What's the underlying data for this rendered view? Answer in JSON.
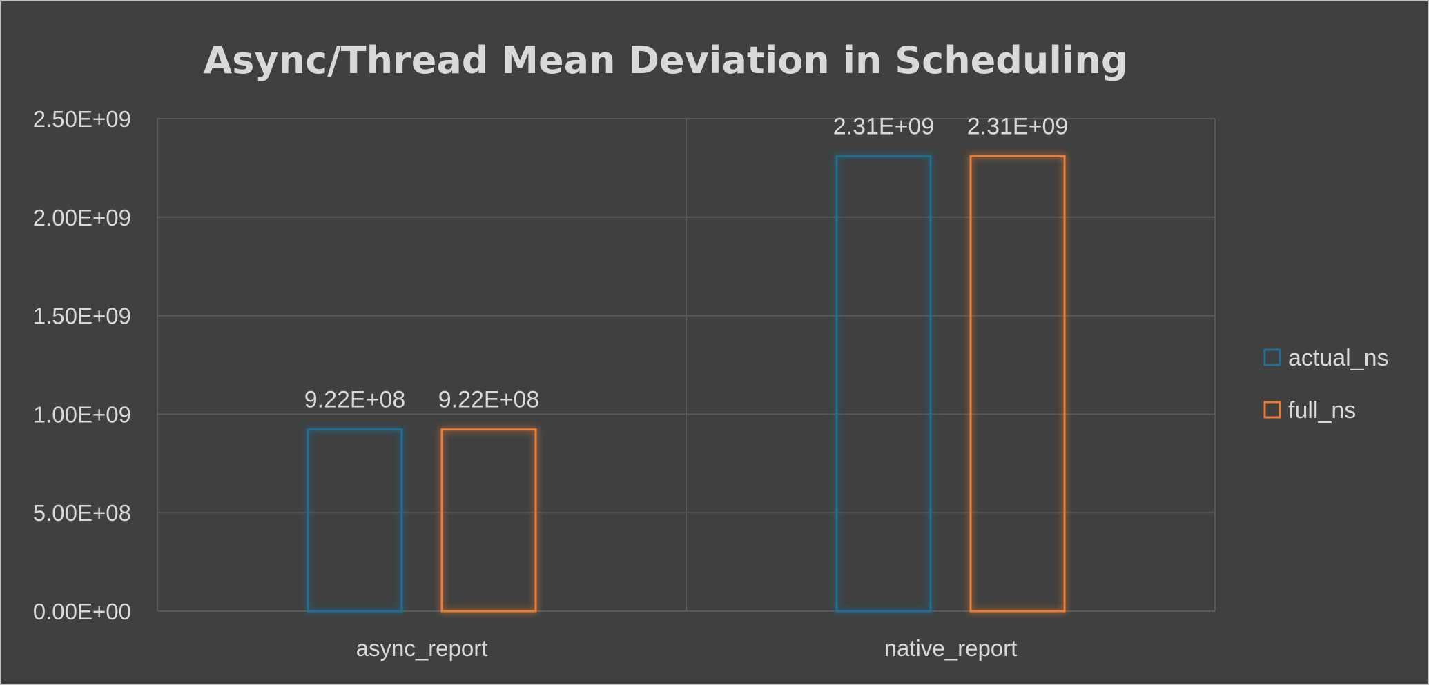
{
  "chart_data": {
    "type": "bar",
    "title": "Async/Thread Mean Deviation in Scheduling",
    "categories": [
      "async_report",
      "native_report"
    ],
    "series": [
      {
        "name": "actual_ns",
        "values": [
          922000000,
          2310000000
        ],
        "labels": [
          "9.22E+08",
          "2.31E+09"
        ],
        "color": "#1f6f96"
      },
      {
        "name": "full_ns",
        "values": [
          922000000,
          2310000000
        ],
        "labels": [
          "9.22E+08",
          "2.31E+09"
        ],
        "color": "#ed7d31"
      }
    ],
    "ylim": [
      0,
      2500000000
    ],
    "yticks": [
      {
        "value": 0,
        "label": "0.00E+00"
      },
      {
        "value": 500000000,
        "label": "5.00E+08"
      },
      {
        "value": 1000000000,
        "label": "1.00E+09"
      },
      {
        "value": 1500000000,
        "label": "1.50E+09"
      },
      {
        "value": 2000000000,
        "label": "2.00E+09"
      },
      {
        "value": 2500000000,
        "label": "2.50E+09"
      }
    ],
    "grid": true,
    "legend": "right",
    "bar_style": "outline-glow",
    "colors": {
      "background": "#404040",
      "text": "#d9d9d9",
      "grid": "#595959"
    }
  }
}
